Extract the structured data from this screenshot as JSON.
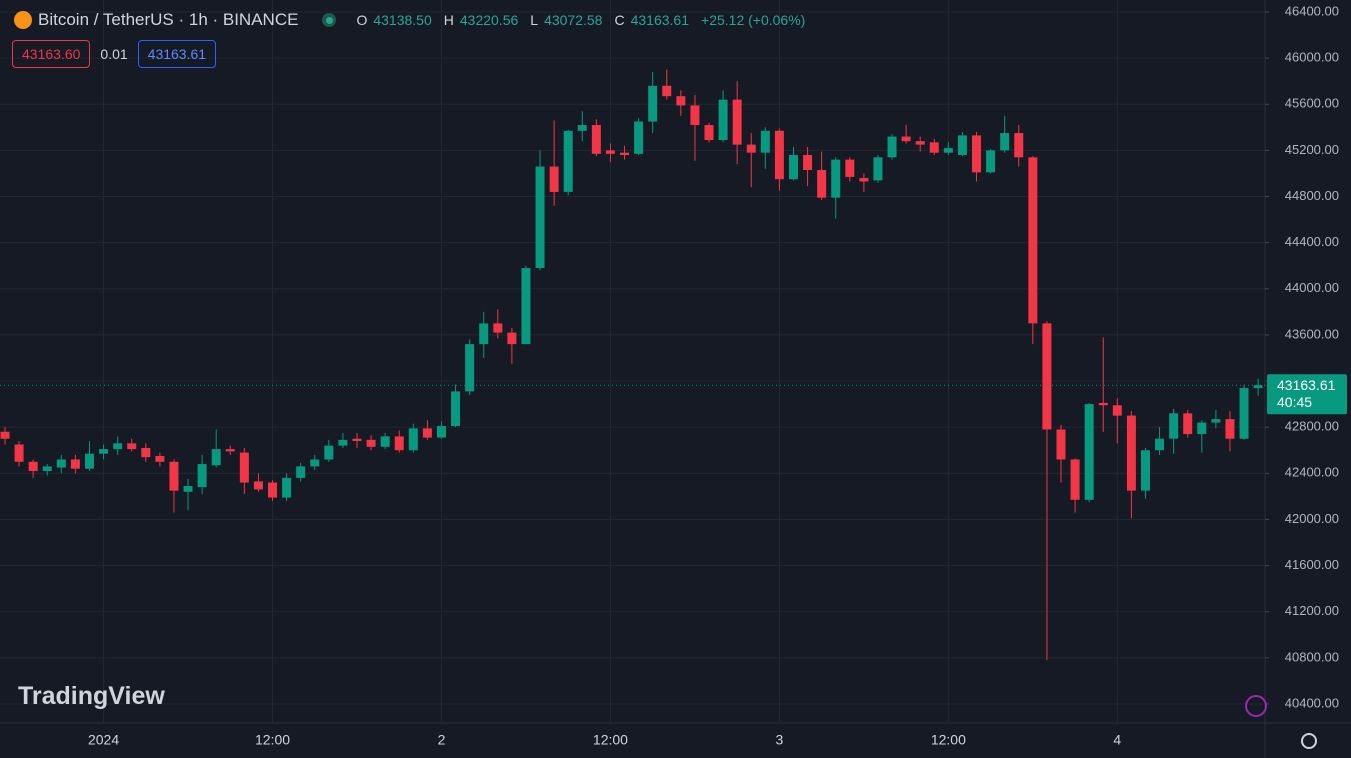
{
  "header": {
    "symbol": "Bitcoin / TetherUS · 1h · BINANCE",
    "ohlc_labels": [
      "O",
      "H",
      "L",
      "C"
    ],
    "ohlc_values": [
      "43138.50",
      "43220.56",
      "43072.58",
      "43163.61"
    ],
    "change": "+25.12 (+0.06%)"
  },
  "trade": {
    "sell": "43163.60",
    "quantity": "0.01",
    "buy": "43163.61"
  },
  "watermark": "TradingView",
  "chart_data": {
    "type": "candlestick",
    "categories": [
      null,
      null,
      null,
      null,
      null,
      null,
      null,
      "2024",
      null,
      null,
      null,
      null,
      null,
      null,
      null,
      null,
      null,
      null,
      null,
      "12:00",
      null,
      null,
      null,
      null,
      null,
      null,
      null,
      null,
      null,
      null,
      null,
      "2",
      null,
      null,
      null,
      null,
      null,
      null,
      null,
      null,
      null,
      null,
      null,
      "12:00",
      null,
      null,
      null,
      null,
      null,
      null,
      null,
      null,
      null,
      null,
      null,
      "3",
      null,
      null,
      null,
      null,
      null,
      null,
      null,
      null,
      null,
      null,
      null,
      "12:00",
      null,
      null,
      null,
      null,
      null,
      null,
      null,
      null,
      null,
      null,
      null,
      "4",
      null,
      null,
      null,
      null,
      null,
      null,
      null,
      null,
      null,
      null
    ],
    "open": [
      42760,
      42650,
      42500,
      42420,
      42450,
      42520,
      42440,
      42570,
      42610,
      42660,
      42620,
      42550,
      42500,
      42240,
      42280,
      42470,
      42610,
      42580,
      42330,
      42320,
      42190,
      42360,
      42460,
      42520,
      42640,
      42700,
      42690,
      42630,
      42720,
      42600,
      42790,
      42710,
      42810,
      43110,
      43520,
      43700,
      43620,
      43520,
      44180,
      45060,
      44840,
      45370,
      45420,
      45200,
      45180,
      45170,
      45450,
      45760,
      45670,
      45590,
      45420,
      45290,
      45640,
      45250,
      45180,
      45370,
      44950,
      45160,
      45030,
      44790,
      45120,
      44960,
      44940,
      45140,
      45320,
      45280,
      45270,
      45180,
      45160,
      45330,
      45010,
      45200,
      45350,
      45140,
      43700,
      42780,
      42520,
      42170,
      43010,
      42990,
      42900,
      42250,
      42600,
      42700,
      42920,
      42740,
      42840,
      42870,
      42700,
      43138.5
    ],
    "high": [
      42800,
      42680,
      42520,
      42480,
      42560,
      42560,
      42680,
      42650,
      42720,
      42700,
      42660,
      42580,
      42520,
      42350,
      42560,
      42780,
      42640,
      42620,
      42400,
      42340,
      42400,
      42490,
      42560,
      42690,
      42750,
      42750,
      42730,
      42750,
      42770,
      42830,
      42860,
      42850,
      43170,
      43560,
      43800,
      43820,
      43660,
      44200,
      45200,
      45460,
      45380,
      45540,
      45470,
      45260,
      45240,
      45480,
      45880,
      45900,
      45720,
      45680,
      45440,
      45720,
      45800,
      45350,
      45400,
      45390,
      45230,
      45230,
      45190,
      45140,
      45140,
      45000,
      45160,
      45340,
      45420,
      45320,
      45300,
      45270,
      45360,
      45360,
      45210,
      45500,
      45420,
      45150,
      43720,
      42820,
      42530,
      43010,
      43580,
      43050,
      42940,
      42620,
      42800,
      42960,
      42950,
      42860,
      42950,
      42940,
      43170,
      43220.56
    ],
    "low": [
      42650,
      42460,
      42360,
      42380,
      42400,
      42400,
      42420,
      42520,
      42560,
      42590,
      42500,
      42460,
      42060,
      42080,
      42220,
      42450,
      42560,
      42220,
      42240,
      42160,
      42160,
      42330,
      42430,
      42500,
      42620,
      42620,
      42600,
      42610,
      42580,
      42580,
      42690,
      42700,
      42800,
      43080,
      43400,
      43570,
      43350,
      43520,
      44160,
      44720,
      44810,
      45280,
      45150,
      45100,
      45120,
      45160,
      45350,
      45640,
      45500,
      45110,
      45270,
      45270,
      45080,
      44880,
      45040,
      44850,
      44940,
      44890,
      44770,
      44610,
      44930,
      44840,
      44920,
      45120,
      45260,
      45190,
      45160,
      45160,
      45150,
      44930,
      45000,
      45180,
      45060,
      43520,
      40780,
      42320,
      42060,
      42150,
      42760,
      42660,
      42010,
      42180,
      42560,
      42570,
      42710,
      42580,
      42790,
      42590,
      42690,
      43072.58
    ],
    "close": [
      42700,
      42500,
      42420,
      42460,
      42520,
      42440,
      42570,
      42610,
      42660,
      42610,
      42540,
      42500,
      42250,
      42290,
      42480,
      42610,
      42590,
      42320,
      42260,
      42190,
      42360,
      42460,
      42520,
      42640,
      42690,
      42680,
      42630,
      42720,
      42600,
      42790,
      42710,
      42810,
      43110,
      43520,
      43700,
      43620,
      43520,
      44180,
      45060,
      44840,
      45370,
      45420,
      45170,
      45170,
      45160,
      45450,
      45760,
      45670,
      45590,
      45420,
      45290,
      45640,
      45250,
      45180,
      45370,
      44950,
      45160,
      45030,
      44790,
      45120,
      44970,
      44930,
      45140,
      45320,
      45280,
      45250,
      45180,
      45220,
      45330,
      45010,
      45200,
      45350,
      45140,
      43700,
      42780,
      42520,
      42170,
      43000,
      42990,
      42900,
      42250,
      42600,
      42700,
      42920,
      42740,
      42840,
      42870,
      42700,
      43140,
      43163.61
    ],
    "up_color": "#089981",
    "down_color": "#f23645",
    "ylim": [
      40235,
      46504
    ],
    "yticks": [
      {
        "value": 40400,
        "label": "40400.00"
      },
      {
        "value": 40800,
        "label": "40800.00"
      },
      {
        "value": 41200,
        "label": "41200.00"
      },
      {
        "value": 41600,
        "label": "41600.00"
      },
      {
        "value": 42000,
        "label": "42000.00"
      },
      {
        "value": 42400,
        "label": "42400.00"
      },
      {
        "value": 42800,
        "label": "42800.00"
      },
      {
        "value": 43200,
        "label": "43200.00"
      },
      {
        "value": 43600,
        "label": "43600.00"
      },
      {
        "value": 44000,
        "label": "44000.00"
      },
      {
        "value": 44400,
        "label": "44400.00"
      },
      {
        "value": 44800,
        "label": "44800.00"
      },
      {
        "value": 45200,
        "label": "45200.00"
      },
      {
        "value": 45600,
        "label": "45600.00"
      },
      {
        "value": 46000,
        "label": "46000.00"
      },
      {
        "value": 46400,
        "label": "46400.00"
      }
    ],
    "last_price": {
      "value": 43163.61,
      "label": "43163.61"
    },
    "countdown": "40:45",
    "grid": true
  }
}
